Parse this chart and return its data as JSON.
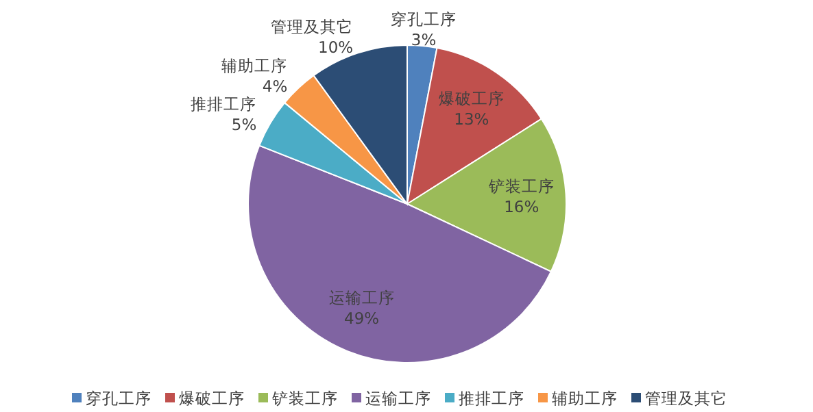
{
  "chart_data": {
    "type": "pie",
    "categories": [
      "穿孔工序",
      "爆破工序",
      "铲装工序",
      "运输工序",
      "推排工序",
      "辅助工序",
      "管理及其它"
    ],
    "values": [
      3,
      13,
      16,
      49,
      5,
      4,
      10
    ],
    "value_labels": [
      "3%",
      "13%",
      "16%",
      "49%",
      "5%",
      "4%",
      "10%"
    ],
    "colors": [
      "#4f81bd",
      "#c0504d",
      "#9bbb59",
      "#8064a2",
      "#4bacc6",
      "#f79646",
      "#2c4d75"
    ],
    "legend": "bottom"
  }
}
